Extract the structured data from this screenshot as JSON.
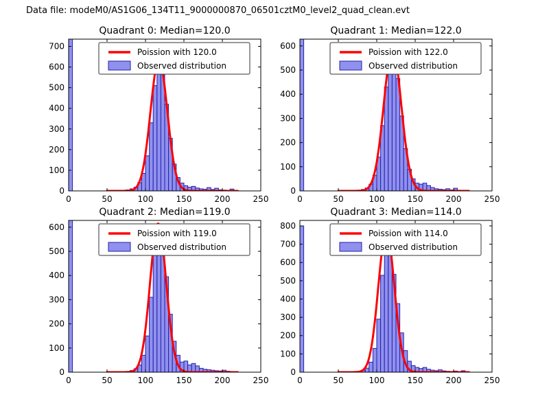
{
  "figure_title": "Data file: modeM0/AS1G06_134T11_9000000870_06501cztM0_level2_quad_clean.evt",
  "colors": {
    "bar_fill": "#9090ee",
    "bar_edge": "#2222aa",
    "curve": "#ff0000",
    "axis": "#000000",
    "background": "#ffffff"
  },
  "chart_data": [
    {
      "type": "bar",
      "subtype": "histogram_with_fit",
      "title": "Quadrant 0: Median=120.0",
      "legend": [
        "Poission with 120.0",
        "Observed distribution"
      ],
      "xlabel": "",
      "ylabel": "",
      "xlim": [
        0,
        250
      ],
      "xticks": [
        0,
        50,
        100,
        150,
        200,
        250
      ],
      "ylim": [
        0,
        735
      ],
      "yticks": [
        0,
        100,
        200,
        300,
        400,
        500,
        600,
        700
      ],
      "bin_width": 5,
      "bars": [
        [
          0,
          735
        ],
        [
          70,
          3
        ],
        [
          75,
          5
        ],
        [
          80,
          10
        ],
        [
          85,
          18
        ],
        [
          90,
          40
        ],
        [
          95,
          85
        ],
        [
          100,
          170
        ],
        [
          105,
          330
        ],
        [
          110,
          510
        ],
        [
          115,
          620
        ],
        [
          120,
          575
        ],
        [
          125,
          420
        ],
        [
          130,
          255
        ],
        [
          135,
          130
        ],
        [
          140,
          65
        ],
        [
          145,
          38
        ],
        [
          150,
          25
        ],
        [
          155,
          18
        ],
        [
          160,
          22
        ],
        [
          165,
          14
        ],
        [
          170,
          10
        ],
        [
          175,
          8
        ],
        [
          180,
          16
        ],
        [
          185,
          7
        ],
        [
          190,
          13
        ],
        [
          195,
          5
        ],
        [
          200,
          4
        ],
        [
          205,
          3
        ],
        [
          210,
          9
        ],
        [
          215,
          3
        ]
      ],
      "curve": {
        "mu": 117.5,
        "sigma": 11,
        "amp": 635,
        "range": [
          50,
          220
        ]
      }
    },
    {
      "type": "bar",
      "subtype": "histogram_with_fit",
      "title": "Quadrant 1: Median=122.0",
      "legend": [
        "Poission with 122.0",
        "Observed distribution"
      ],
      "xlabel": "",
      "ylabel": "",
      "xlim": [
        0,
        250
      ],
      "xticks": [
        0,
        50,
        100,
        150,
        200,
        250
      ],
      "ylim": [
        0,
        628
      ],
      "yticks": [
        0,
        100,
        200,
        300,
        400,
        500,
        600
      ],
      "bin_width": 5,
      "bars": [
        [
          0,
          628
        ],
        [
          75,
          3
        ],
        [
          80,
          6
        ],
        [
          85,
          12
        ],
        [
          90,
          28
        ],
        [
          95,
          65
        ],
        [
          100,
          140
        ],
        [
          105,
          270
        ],
        [
          110,
          430
        ],
        [
          115,
          545
        ],
        [
          120,
          560
        ],
        [
          125,
          465
        ],
        [
          130,
          310
        ],
        [
          135,
          175
        ],
        [
          140,
          90
        ],
        [
          145,
          50
        ],
        [
          150,
          32
        ],
        [
          155,
          28
        ],
        [
          160,
          32
        ],
        [
          165,
          22
        ],
        [
          170,
          14
        ],
        [
          175,
          9
        ],
        [
          180,
          7
        ],
        [
          185,
          5
        ],
        [
          190,
          9
        ],
        [
          195,
          4
        ],
        [
          200,
          11
        ],
        [
          205,
          3
        ]
      ],
      "curve": {
        "mu": 120.5,
        "sigma": 11.5,
        "amp": 585,
        "range": [
          50,
          220
        ]
      }
    },
    {
      "type": "bar",
      "subtype": "histogram_with_fit",
      "title": "Quadrant 2: Median=119.0",
      "legend": [
        "Poission with 119.0",
        "Observed distribution"
      ],
      "xlabel": "",
      "ylabel": "",
      "xlim": [
        0,
        250
      ],
      "xticks": [
        0,
        50,
        100,
        150,
        200,
        250
      ],
      "ylim": [
        0,
        628
      ],
      "yticks": [
        0,
        100,
        200,
        300,
        400,
        500,
        600
      ],
      "bin_width": 5,
      "bars": [
        [
          0,
          628
        ],
        [
          75,
          3
        ],
        [
          80,
          7
        ],
        [
          85,
          14
        ],
        [
          90,
          30
        ],
        [
          95,
          70
        ],
        [
          100,
          150
        ],
        [
          105,
          310
        ],
        [
          110,
          490
        ],
        [
          115,
          545
        ],
        [
          120,
          515
        ],
        [
          125,
          395
        ],
        [
          130,
          240
        ],
        [
          135,
          128
        ],
        [
          140,
          70
        ],
        [
          145,
          42
        ],
        [
          150,
          46
        ],
        [
          155,
          30
        ],
        [
          160,
          36
        ],
        [
          165,
          26
        ],
        [
          170,
          16
        ],
        [
          175,
          12
        ],
        [
          180,
          10
        ],
        [
          185,
          8
        ],
        [
          190,
          6
        ],
        [
          195,
          5
        ],
        [
          200,
          8
        ],
        [
          205,
          4
        ]
      ],
      "curve": {
        "mu": 116.5,
        "sigma": 10.5,
        "amp": 615,
        "range": [
          50,
          220
        ]
      }
    },
    {
      "type": "bar",
      "subtype": "histogram_with_fit",
      "title": "Quadrant 3: Median=114.0",
      "legend": [
        "Poission with 114.0",
        "Observed distribution"
      ],
      "xlabel": "",
      "ylabel": "",
      "xlim": [
        0,
        250
      ],
      "xticks": [
        0,
        50,
        100,
        150,
        200,
        250
      ],
      "ylim": [
        0,
        830
      ],
      "yticks": [
        0,
        100,
        200,
        300,
        400,
        500,
        600,
        700,
        800
      ],
      "bin_width": 5,
      "bars": [
        [
          0,
          800
        ],
        [
          70,
          3
        ],
        [
          75,
          5
        ],
        [
          80,
          10
        ],
        [
          85,
          22
        ],
        [
          90,
          55
        ],
        [
          95,
          130
        ],
        [
          100,
          290
        ],
        [
          105,
          530
        ],
        [
          110,
          695
        ],
        [
          115,
          655
        ],
        [
          120,
          535
        ],
        [
          125,
          375
        ],
        [
          130,
          215
        ],
        [
          135,
          118
        ],
        [
          140,
          60
        ],
        [
          145,
          36
        ],
        [
          150,
          26
        ],
        [
          155,
          20
        ],
        [
          160,
          26
        ],
        [
          165,
          16
        ],
        [
          170,
          11
        ],
        [
          175,
          8
        ],
        [
          180,
          13
        ],
        [
          185,
          7
        ],
        [
          190,
          5
        ],
        [
          195,
          4
        ],
        [
          200,
          6
        ],
        [
          205,
          3
        ],
        [
          210,
          8
        ],
        [
          215,
          3
        ]
      ],
      "curve": {
        "mu": 112.5,
        "sigma": 10.5,
        "amp": 770,
        "range": [
          50,
          220
        ]
      }
    }
  ]
}
